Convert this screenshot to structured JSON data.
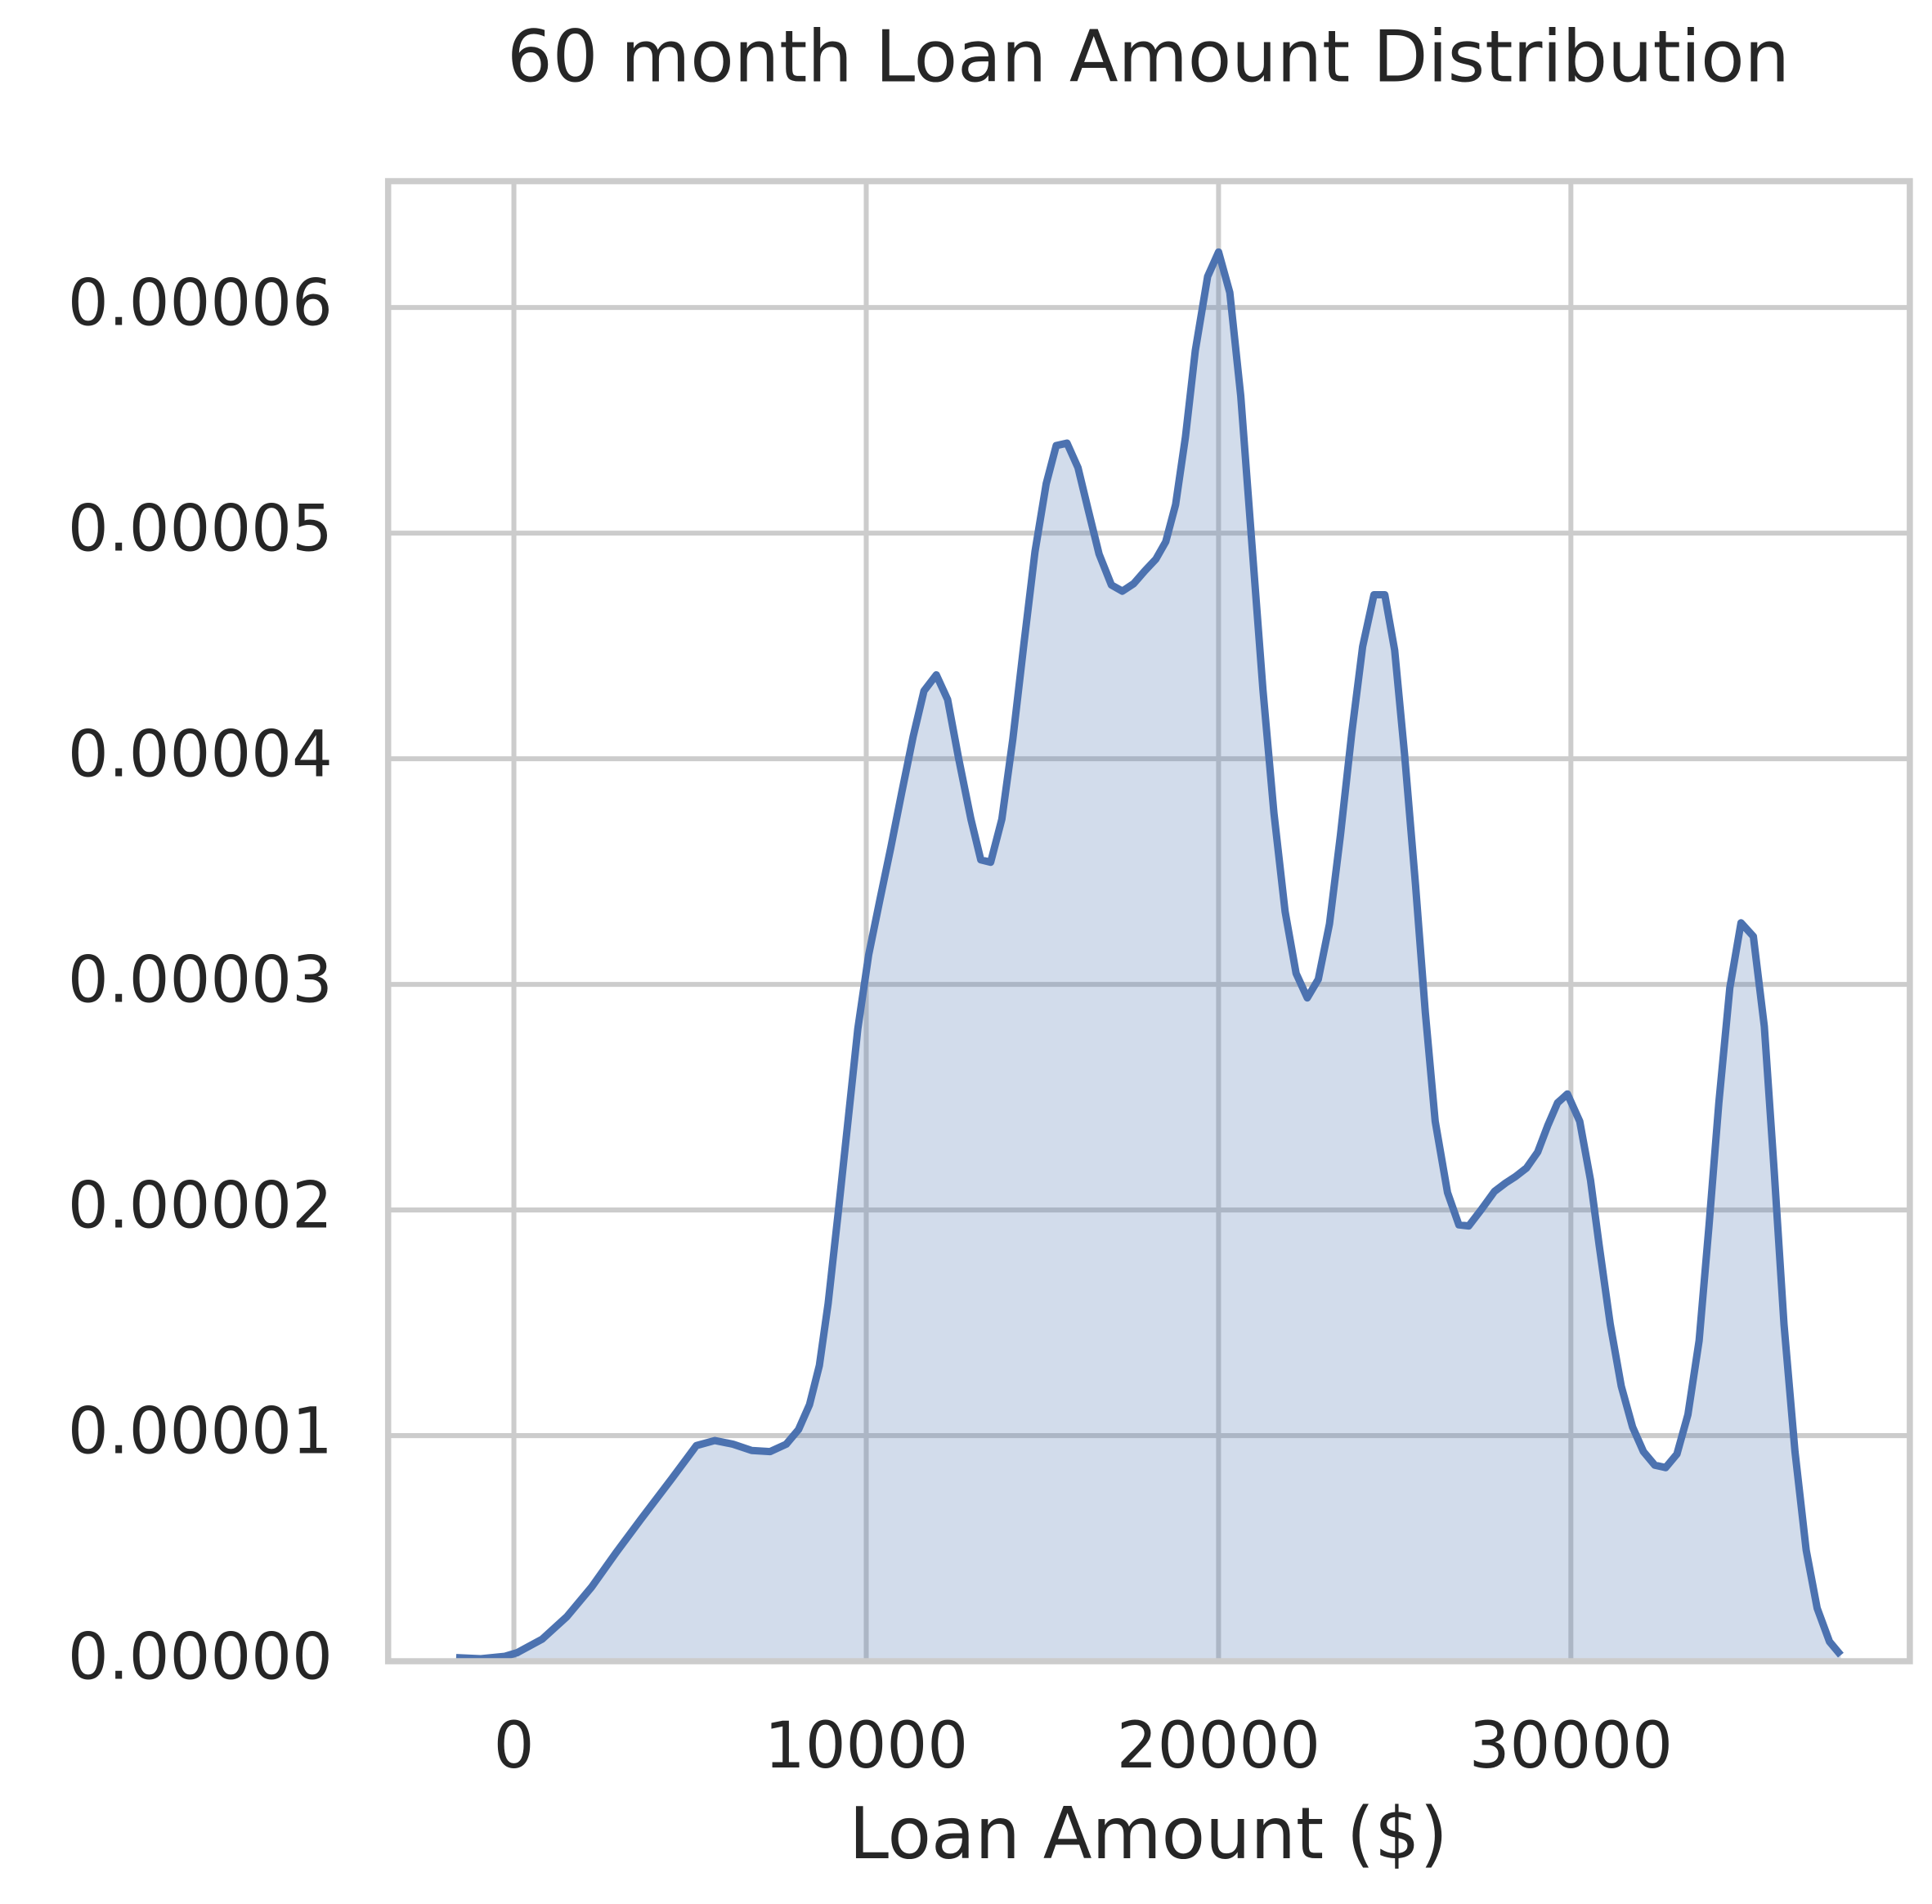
{
  "chart_data": {
    "type": "area",
    "title": "60 month Loan Amount Distribution",
    "xlabel": "Loan Amount ($)",
    "color": "#4c72b0",
    "grid": true,
    "xlim": [
      -3570,
      39620
    ],
    "ylim": [
      0,
      6.56e-05
    ],
    "xticks": [
      0,
      10000,
      20000,
      30000
    ],
    "yticks": [
      {
        "value": 0,
        "label": "0.00000"
      },
      {
        "value": 1e-05,
        "label": "0.00001"
      },
      {
        "value": 2e-05,
        "label": "0.00002"
      },
      {
        "value": 3e-05,
        "label": "0.00003"
      },
      {
        "value": 4e-05,
        "label": "0.00004"
      },
      {
        "value": 5e-05,
        "label": "0.00005"
      },
      {
        "value": 6e-05,
        "label": "0.00006"
      }
    ],
    "x": [
      -1640,
      -940,
      -250,
      100,
      800,
      1500,
      2200,
      2900,
      3600,
      4480,
      5180,
      5700,
      6220,
      6750,
      7270,
      7730,
      8080,
      8390,
      8670,
      8920,
      9200,
      9480,
      9760,
      10070,
      10390,
      10700,
      11010,
      11330,
      11640,
      11990,
      12310,
      12620,
      12970,
      13250,
      13530,
      13850,
      14160,
      14480,
      14790,
      15110,
      15390,
      15700,
      16010,
      16290,
      16610,
      16960,
      17270,
      17590,
      17900,
      18220,
      18500,
      18780,
      19060,
      19340,
      19690,
      20000,
      20320,
      20630,
      20940,
      21260,
      21570,
      21890,
      22200,
      22520,
      22830,
      23150,
      23460,
      23780,
      24090,
      24410,
      24720,
      25000,
      25280,
      25590,
      25870,
      26150,
      26500,
      26820,
      27100,
      27450,
      27830,
      28150,
      28430,
      28740,
      29060,
      29340,
      29620,
      29900,
      30250,
      30560,
      30800,
      31120,
      31430,
      31750,
      32060,
      32380,
      32690,
      33010,
      33320,
      33640,
      33920,
      34200,
      34510,
      34830,
      35180,
      35490,
      35770,
      36050,
      36360,
      36680,
      36990,
      37340,
      37660
    ],
    "values": [
      1.6e-07,
      1.1e-07,
      2.2e-07,
      3.8e-07,
      9.8e-07,
      1.97e-06,
      3.28e-06,
      4.81e-06,
      6.28e-06,
      8.09e-06,
      9.56e-06,
      9.78e-06,
      9.62e-06,
      9.34e-06,
      9.29e-06,
      9.62e-06,
      1.027e-05,
      1.137e-05,
      1.311e-05,
      1.585e-05,
      1.984e-05,
      2.393e-05,
      2.803e-05,
      3.131e-05,
      3.377e-05,
      3.607e-05,
      3.852e-05,
      4.098e-05,
      4.301e-05,
      4.372e-05,
      4.262e-05,
      4.005e-05,
      3.732e-05,
      3.552e-05,
      3.541e-05,
      3.732e-05,
      4.087e-05,
      4.514e-05,
      4.918e-05,
      5.219e-05,
      5.388e-05,
      5.399e-05,
      5.29e-05,
      5.109e-05,
      4.907e-05,
      4.77e-05,
      4.743e-05,
      4.776e-05,
      4.831e-05,
      4.885e-05,
      4.962e-05,
      5.126e-05,
      5.426e-05,
      5.809e-05,
      6.137e-05,
      6.246e-05,
      6.066e-05,
      5.607e-05,
      4.962e-05,
      4.306e-05,
      3.76e-05,
      3.322e-05,
      3.049e-05,
      2.94e-05,
      3.022e-05,
      3.268e-05,
      3.661e-05,
      4.115e-05,
      4.497e-05,
      4.727e-05,
      4.727e-05,
      4.481e-05,
      4.016e-05,
      3.443e-05,
      2.874e-05,
      2.393e-05,
      2.077e-05,
      1.934e-05,
      1.929e-05,
      2e-05,
      2.082e-05,
      2.12e-05,
      2.148e-05,
      2.186e-05,
      2.257e-05,
      2.372e-05,
      2.475e-05,
      2.514e-05,
      2.393e-05,
      2.131e-05,
      1.847e-05,
      1.492e-05,
      1.219e-05,
      1.038e-05,
      9.29e-06,
      8.69e-06,
      8.58e-06,
      9.18e-06,
      1.093e-05,
      1.421e-05,
      1.929e-05,
      2.475e-05,
      2.984e-05,
      3.273e-05,
      3.213e-05,
      2.814e-05,
      2.175e-05,
      1.492e-05,
      9.29e-06,
      4.92e-06,
      2.35e-06,
      8.7e-07,
      2.7e-07
    ]
  }
}
